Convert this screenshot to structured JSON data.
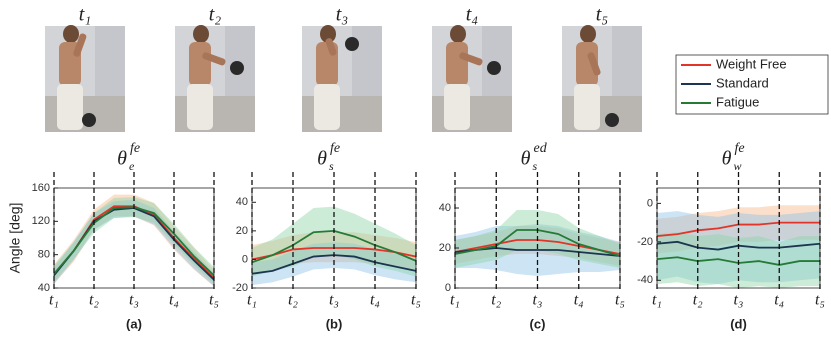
{
  "figure": {
    "photo_labels": [
      "t₁",
      "t₂",
      "t₃",
      "t₄",
      "t₅"
    ]
  },
  "chart_data": [
    {
      "type": "line",
      "label": "(a)",
      "y_label": "Angle [deg]",
      "title": {
        "symbol": "θ",
        "sub": "e",
        "sup": "fe"
      },
      "x": [
        1,
        1.5,
        2,
        2.5,
        3,
        3.5,
        4,
        4.5,
        5
      ],
      "xlim": [
        1,
        5
      ],
      "xticks": [
        {
          "value": 1,
          "label": "t₁"
        },
        {
          "value": 2,
          "label": "t₂"
        },
        {
          "value": 3,
          "label": "t₃"
        },
        {
          "value": 4,
          "label": "t₄"
        },
        {
          "value": 5,
          "label": "t₅"
        }
      ],
      "ylim": [
        40,
        160
      ],
      "yticks": [
        40,
        80,
        120,
        160
      ],
      "series": [
        {
          "name": "Weight Free",
          "color": "#e3342a",
          "band_color": "#f7b98a",
          "values": [
            57,
            85,
            122,
            138,
            138,
            128,
            100,
            75,
            52
          ],
          "lower": [
            45,
            72,
            110,
            126,
            126,
            115,
            86,
            62,
            42
          ],
          "upper": [
            68,
            98,
            134,
            152,
            152,
            142,
            114,
            88,
            62
          ]
        },
        {
          "name": "Standard",
          "color": "#1c3550",
          "band_color": "#8fc3e6",
          "values": [
            55,
            85,
            120,
            134,
            136,
            126,
            98,
            73,
            50
          ],
          "lower": [
            45,
            74,
            110,
            124,
            126,
            116,
            88,
            63,
            42
          ],
          "upper": [
            64,
            96,
            130,
            144,
            146,
            136,
            108,
            83,
            58
          ]
        },
        {
          "name": "Fatigue",
          "color": "#257a36",
          "band_color": "#8fd4a8",
          "values": [
            57,
            85,
            118,
            136,
            137,
            130,
            105,
            78,
            55
          ],
          "lower": [
            47,
            75,
            106,
            124,
            125,
            118,
            93,
            67,
            45
          ],
          "upper": [
            67,
            95,
            130,
            148,
            149,
            142,
            117,
            89,
            65
          ]
        }
      ]
    },
    {
      "type": "line",
      "label": "(b)",
      "title": {
        "symbol": "θ",
        "sub": "s",
        "sup": "fe"
      },
      "x": [
        1,
        1.5,
        2,
        2.5,
        3,
        3.5,
        4,
        4.5,
        5
      ],
      "xlim": [
        1,
        5
      ],
      "xticks": [
        {
          "value": 1,
          "label": "t₁"
        },
        {
          "value": 2,
          "label": "t₂"
        },
        {
          "value": 3,
          "label": "t₃"
        },
        {
          "value": 4,
          "label": "t₄"
        },
        {
          "value": 5,
          "label": "t₅"
        }
      ],
      "ylim": [
        -20,
        50
      ],
      "yticks": [
        -20,
        0,
        20,
        40
      ],
      "series": [
        {
          "color": "#e3342a",
          "band_color": "#f7b98a",
          "values": [
            0,
            3,
            7,
            8,
            8,
            8,
            7,
            5,
            2
          ],
          "lower": [
            -10,
            -7,
            -3,
            -2,
            -2,
            -2,
            -3,
            -5,
            -8
          ],
          "upper": [
            10,
            13,
            17,
            19,
            19,
            19,
            17,
            15,
            12
          ]
        },
        {
          "color": "#1c3550",
          "band_color": "#8fc3e6",
          "values": [
            -10,
            -8,
            -3,
            2,
            3,
            2,
            -2,
            -5,
            -8
          ],
          "lower": [
            -18,
            -16,
            -12,
            -7,
            -6,
            -7,
            -11,
            -14,
            -16
          ],
          "upper": [
            -2,
            0,
            6,
            11,
            12,
            11,
            7,
            4,
            0
          ]
        },
        {
          "color": "#257a36",
          "band_color": "#8fd4a8",
          "values": [
            -2,
            3,
            10,
            19,
            20,
            16,
            10,
            5,
            -1
          ],
          "lower": [
            -12,
            -8,
            -5,
            2,
            3,
            0,
            -5,
            -8,
            -12
          ],
          "upper": [
            8,
            14,
            25,
            36,
            37,
            32,
            25,
            18,
            10
          ]
        }
      ]
    },
    {
      "type": "line",
      "label": "(c)",
      "title": {
        "symbol": "θ",
        "sub": "s",
        "sup": "ed"
      },
      "x": [
        1,
        1.5,
        2,
        2.5,
        3,
        3.5,
        4,
        4.5,
        5
      ],
      "xlim": [
        1,
        5
      ],
      "xticks": [
        {
          "value": 1,
          "label": "t₁"
        },
        {
          "value": 2,
          "label": "t₂"
        },
        {
          "value": 3,
          "label": "t₃"
        },
        {
          "value": 4,
          "label": "t₄"
        },
        {
          "value": 5,
          "label": "t₅"
        }
      ],
      "ylim": [
        0,
        50
      ],
      "yticks": [
        0,
        20,
        40
      ],
      "series": [
        {
          "color": "#e3342a",
          "band_color": "#f7b98a",
          "values": [
            18,
            20,
            22,
            24,
            24,
            23,
            21,
            19,
            17
          ],
          "lower": [
            12,
            14,
            16,
            17,
            17,
            16,
            15,
            13,
            11
          ],
          "upper": [
            24,
            26,
            28,
            31,
            31,
            30,
            27,
            25,
            23
          ]
        },
        {
          "color": "#1c3550",
          "band_color": "#8fc3e6",
          "values": [
            18,
            19,
            20,
            19,
            19,
            19,
            18,
            17,
            16
          ],
          "lower": [
            10,
            10,
            9,
            7,
            6,
            7,
            8,
            8,
            9
          ],
          "upper": [
            26,
            28,
            31,
            31,
            32,
            31,
            28,
            26,
            23
          ]
        },
        {
          "color": "#257a36",
          "band_color": "#8fd4a8",
          "values": [
            17,
            19,
            21,
            29,
            29,
            27,
            22,
            19,
            16
          ],
          "lower": [
            10,
            12,
            14,
            19,
            19,
            17,
            14,
            12,
            10
          ],
          "upper": [
            24,
            26,
            29,
            39,
            39,
            37,
            30,
            26,
            22
          ]
        }
      ]
    },
    {
      "type": "line",
      "label": "(d)",
      "title": {
        "symbol": "θ",
        "sub": "w",
        "sup": "fe"
      },
      "x": [
        1,
        1.5,
        2,
        2.5,
        3,
        3.5,
        4,
        4.5,
        5
      ],
      "xlim": [
        1,
        5
      ],
      "xticks": [
        {
          "value": 1,
          "label": "t₁"
        },
        {
          "value": 2,
          "label": "t₂"
        },
        {
          "value": 3,
          "label": "t₃"
        },
        {
          "value": 4,
          "label": "t₄"
        },
        {
          "value": 5,
          "label": "t₅"
        }
      ],
      "ylim": [
        -44,
        8
      ],
      "yticks": [
        -40,
        -20,
        0
      ],
      "series": [
        {
          "color": "#e3342a",
          "band_color": "#f7b98a",
          "values": [
            -17,
            -16,
            -14,
            -13,
            -11,
            -11,
            -10,
            -10,
            -10
          ],
          "lower": [
            -26,
            -25,
            -23,
            -22,
            -20,
            -20,
            -19,
            -19,
            -19
          ],
          "upper": [
            -8,
            -7,
            -5,
            -4,
            -2,
            -2,
            -1,
            -1,
            -1
          ]
        },
        {
          "color": "#1c3550",
          "band_color": "#8fc3e6",
          "values": [
            -21,
            -20,
            -23,
            -24,
            -22,
            -23,
            -23,
            -22,
            -21
          ],
          "lower": [
            -40,
            -38,
            -41,
            -42,
            -40,
            -41,
            -41,
            -40,
            -39
          ],
          "upper": [
            -5,
            -4,
            -6,
            -7,
            -5,
            -6,
            -6,
            -5,
            -4
          ]
        },
        {
          "color": "#257a36",
          "band_color": "#8fd4a8",
          "values": [
            -29,
            -28,
            -30,
            -29,
            -31,
            -30,
            -32,
            -30,
            -30
          ],
          "lower": [
            -42,
            -41,
            -43,
            -42,
            -44,
            -43,
            -44,
            -43,
            -43
          ],
          "upper": [
            -16,
            -15,
            -17,
            -16,
            -18,
            -17,
            -20,
            -17,
            -17
          ]
        }
      ]
    }
  ]
}
